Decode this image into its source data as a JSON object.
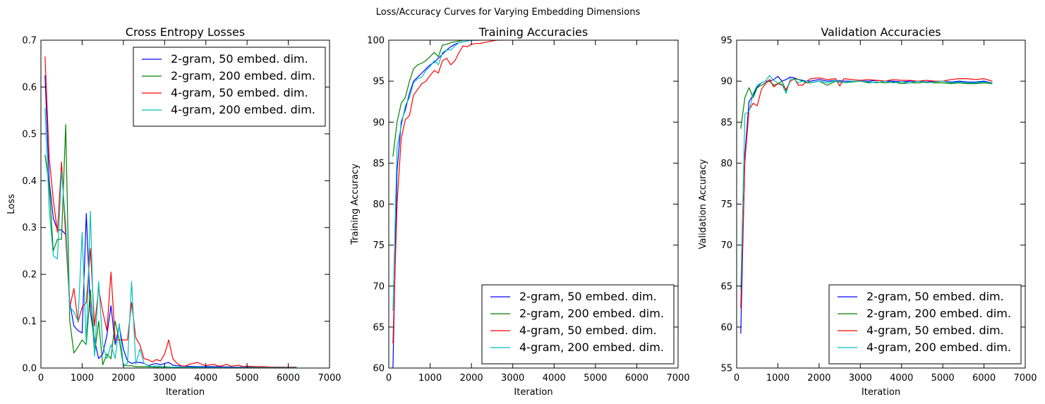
{
  "figure": {
    "suptitle": "Loss/Accuracy Curves for Varying Embedding Dimensions"
  },
  "series_colors": {
    "2-gram, 50 embed. dim.": "#0000ff",
    "2-gram, 200 embed. dim.": "#008000",
    "4-gram, 50 embed. dim.": "#ff0000",
    "4-gram, 200 embed. dim.": "#00bfbf"
  },
  "chart_data": [
    {
      "type": "line",
      "title": "Cross Entropy Losses",
      "xlabel": "Iteration",
      "ylabel": "Loss",
      "xlim": [
        0,
        7000
      ],
      "ylim": [
        0,
        0.7
      ],
      "xticks": [
        "0",
        "1000",
        "2000",
        "3000",
        "4000",
        "5000",
        "6000",
        "7000"
      ],
      "yticks": [
        "0.0",
        "0.1",
        "0.2",
        "0.3",
        "0.4",
        "0.5",
        "0.6",
        "0.7"
      ],
      "legend_position": "upper right",
      "grid": false,
      "series": [
        {
          "name": "2-gram, 50 embed. dim.",
          "x": [
            100,
            200,
            300,
            400,
            500,
            600,
            700,
            800,
            900,
            1000,
            1100,
            1200,
            1300,
            1400,
            1500,
            1600,
            1700,
            1800,
            1900,
            2000,
            2100,
            2200,
            2300,
            2400,
            2500,
            2600,
            2700,
            2800,
            2900,
            3000,
            3100,
            3200,
            3300,
            3500,
            3800,
            4200,
            4700,
            5200,
            5700,
            6200
          ],
          "y": [
            0.625,
            0.4,
            0.32,
            0.295,
            0.295,
            0.285,
            0.14,
            0.09,
            0.08,
            0.075,
            0.33,
            0.12,
            0.06,
            0.02,
            0.03,
            0.07,
            0.133,
            0.05,
            0.09,
            0.04,
            0.015,
            0.01,
            0.012,
            0.012,
            0.01,
            0.005,
            0.008,
            0.01,
            0.007,
            0.01,
            0.012,
            0.006,
            0.005,
            0.004,
            0.003,
            0.003,
            0.002,
            0.002,
            0.002,
            0.001
          ]
        },
        {
          "name": "2-gram, 200 embed. dim.",
          "x": [
            100,
            200,
            300,
            400,
            500,
            600,
            700,
            800,
            900,
            1000,
            1100,
            1200,
            1300,
            1400,
            1500,
            1600,
            1700,
            1800,
            1900,
            2000,
            2100,
            2200,
            2300,
            2500,
            2800,
            3200,
            3700,
            4200,
            4700,
            5200,
            5700,
            6200
          ],
          "y": [
            0.455,
            0.39,
            0.25,
            0.275,
            0.275,
            0.52,
            0.1,
            0.032,
            0.045,
            0.06,
            0.05,
            0.167,
            0.03,
            0.1,
            0.007,
            0.03,
            0.02,
            0.1,
            0.06,
            0.005,
            0.005,
            0.005,
            0.003,
            0.003,
            0.002,
            0.002,
            0.001,
            0.001,
            0.001,
            0.001,
            0.001,
            0.001
          ]
        },
        {
          "name": "4-gram, 50 embed. dim.",
          "x": [
            100,
            200,
            300,
            400,
            500,
            600,
            700,
            800,
            900,
            1000,
            1100,
            1200,
            1300,
            1400,
            1500,
            1600,
            1700,
            1800,
            1900,
            2000,
            2100,
            2200,
            2300,
            2400,
            2500,
            2600,
            2700,
            2800,
            2900,
            3000,
            3100,
            3200,
            3300,
            3400,
            3500,
            3600,
            3700,
            3800,
            3900,
            4000,
            4100,
            4200,
            4300,
            4400,
            4500,
            4600,
            4700,
            4800,
            4900,
            5000,
            5200,
            5400,
            5600,
            5800,
            6000,
            6200
          ],
          "y": [
            0.665,
            0.45,
            0.36,
            0.29,
            0.44,
            0.28,
            0.13,
            0.17,
            0.098,
            0.13,
            0.14,
            0.255,
            0.09,
            0.17,
            0.12,
            0.08,
            0.205,
            0.06,
            0.06,
            0.06,
            0.06,
            0.14,
            0.065,
            0.05,
            0.02,
            0.018,
            0.013,
            0.018,
            0.015,
            0.03,
            0.06,
            0.02,
            0.01,
            0.005,
            0.004,
            0.008,
            0.01,
            0.012,
            0.008,
            0.005,
            0.007,
            0.008,
            0.004,
            0.005,
            0.008,
            0.004,
            0.005,
            0.006,
            0.003,
            0.004,
            0.003,
            0.003,
            0.002,
            0.002,
            0.002,
            0.002
          ]
        },
        {
          "name": "4-gram, 200 embed. dim.",
          "x": [
            100,
            200,
            300,
            400,
            500,
            600,
            700,
            800,
            900,
            1000,
            1100,
            1200,
            1300,
            1400,
            1500,
            1600,
            1700,
            1800,
            1900,
            2000,
            2100,
            2200,
            2300,
            2400,
            2500,
            2600,
            2700,
            2800,
            2900,
            3000,
            3200,
            3500,
            3800,
            4200,
            4700,
            5200,
            5700,
            6200
          ],
          "y": [
            0.555,
            0.34,
            0.24,
            0.233,
            0.42,
            0.31,
            0.13,
            0.12,
            0.1,
            0.29,
            0.05,
            0.335,
            0.025,
            0.185,
            0.05,
            0.02,
            0.05,
            0.02,
            0.095,
            0.005,
            0.01,
            0.185,
            0.008,
            0.04,
            0.01,
            0.005,
            0.003,
            0.005,
            0.003,
            0.003,
            0.002,
            0.002,
            0.002,
            0.001,
            0.001,
            0.001,
            0.001,
            0.001
          ]
        }
      ]
    },
    {
      "type": "line",
      "title": "Training Accuracies",
      "xlabel": "Iteration",
      "ylabel": "Training Accuracy",
      "xlim": [
        0,
        7000
      ],
      "ylim": [
        60,
        100
      ],
      "xticks": [
        "0",
        "1000",
        "2000",
        "3000",
        "4000",
        "5000",
        "6000",
        "7000"
      ],
      "yticks": [
        "60",
        "65",
        "70",
        "75",
        "80",
        "85",
        "90",
        "95",
        "100"
      ],
      "legend_position": "lower right",
      "grid": false,
      "series": [
        {
          "name": "2-gram, 50 embed. dim.",
          "x": [
            100,
            200,
            300,
            400,
            500,
            600,
            700,
            800,
            900,
            1000,
            1100,
            1200,
            1300,
            1400,
            1500,
            1600,
            1700,
            1800,
            1900,
            2000,
            2100,
            2200
          ],
          "y": [
            60,
            84,
            90,
            91.5,
            93.5,
            95,
            95.5,
            96,
            96.5,
            97,
            97.3,
            97.8,
            98.3,
            98.8,
            99.2,
            99.5,
            99.7,
            99.8,
            99.9,
            100,
            100,
            100
          ]
        },
        {
          "name": "2-gram, 200 embed. dim.",
          "x": [
            100,
            200,
            300,
            400,
            500,
            600,
            700,
            800,
            900,
            1000,
            1100,
            1200,
            1300,
            1400,
            1500,
            1600,
            1700,
            1800,
            1900,
            2000,
            2100
          ],
          "y": [
            85.8,
            90,
            92.3,
            93,
            95,
            96.5,
            97,
            97.2,
            97.5,
            98,
            98.5,
            98,
            99.4,
            99.5,
            99.7,
            99.8,
            99.9,
            100,
            100,
            100,
            100
          ]
        },
        {
          "name": "4-gram, 50 embed. dim.",
          "x": [
            100,
            200,
            300,
            400,
            500,
            600,
            700,
            800,
            900,
            1000,
            1100,
            1200,
            1300,
            1400,
            1500,
            1600,
            1700,
            1800,
            1900,
            2000,
            2100,
            2200,
            2300,
            2400,
            2500,
            2600,
            2700
          ],
          "y": [
            63,
            80,
            88,
            90.3,
            90.8,
            93.3,
            94,
            94.7,
            95,
            95.7,
            96.3,
            96,
            97.5,
            97.8,
            97,
            97.5,
            98.5,
            99.3,
            99.2,
            99.5,
            99.6,
            99.6,
            99.7,
            99.8,
            99.9,
            100,
            100
          ]
        },
        {
          "name": "4-gram, 200 embed. dim.",
          "x": [
            100,
            200,
            300,
            400,
            500,
            600,
            700,
            800,
            900,
            1000,
            1100,
            1200,
            1300,
            1400,
            1500,
            1600,
            1700,
            1800,
            1900,
            2000,
            2100
          ],
          "y": [
            67,
            87,
            89.5,
            92,
            93,
            94.8,
            95.3,
            95.5,
            96.3,
            96.8,
            97.5,
            97,
            98.5,
            98.8,
            98.8,
            99.3,
            99.7,
            99.8,
            99.9,
            100,
            100
          ]
        }
      ]
    },
    {
      "type": "line",
      "title": "Validation Accuracies",
      "xlabel": "Iteration",
      "ylabel": "Validation Accuracy",
      "xlim": [
        0,
        7000
      ],
      "ylim": [
        55,
        95
      ],
      "xticks": [
        "0",
        "1000",
        "2000",
        "3000",
        "4000",
        "5000",
        "6000",
        "7000"
      ],
      "yticks": [
        "55",
        "60",
        "65",
        "70",
        "75",
        "80",
        "85",
        "90",
        "95"
      ],
      "legend_position": "lower right",
      "grid": false,
      "series": [
        {
          "name": "2-gram, 50 embed. dim.",
          "x": [
            100,
            200,
            300,
            400,
            500,
            600,
            700,
            800,
            900,
            1000,
            1100,
            1200,
            1300,
            1400,
            1500,
            1600,
            1700,
            1800,
            2000,
            2200,
            2400,
            2600,
            2800,
            3000,
            3200,
            3400,
            3600,
            3800,
            4000,
            4200,
            4400,
            4600,
            4800,
            5000,
            5200,
            5400,
            5600,
            5800,
            6000,
            6200
          ],
          "y": [
            59.2,
            81,
            87.5,
            88.3,
            89.3,
            89.8,
            90,
            90,
            90.2,
            90.6,
            90,
            90.2,
            90.5,
            90.4,
            90.2,
            90.1,
            90,
            90,
            90.2,
            90,
            90.1,
            90,
            90,
            90,
            90,
            90.1,
            90,
            90,
            89.9,
            90,
            90,
            89.9,
            90,
            90,
            89.9,
            90,
            89.9,
            89.9,
            90,
            89.8
          ]
        },
        {
          "name": "2-gram, 200 embed. dim.",
          "x": [
            100,
            200,
            300,
            400,
            500,
            600,
            700,
            800,
            900,
            1000,
            1100,
            1200,
            1300,
            1400,
            1500,
            1600,
            1700,
            1800,
            2000,
            2200,
            2400,
            2600,
            2800,
            3000,
            3200,
            3400,
            3600,
            3800,
            4000,
            4200,
            4400,
            4600,
            4800,
            5000,
            5200,
            5400,
            5600,
            5800,
            6000,
            6200
          ],
          "y": [
            84.2,
            88,
            89.2,
            88,
            89.2,
            89.5,
            89.8,
            90,
            89.5,
            89.7,
            90,
            88.8,
            90,
            90.3,
            90.2,
            90,
            89.8,
            89.8,
            90,
            89.5,
            90,
            89.8,
            89.9,
            90,
            89.8,
            89.9,
            89.8,
            89.9,
            89.7,
            89.8,
            89.8,
            89.9,
            89.8,
            89.8,
            89.7,
            89.8,
            89.7,
            89.7,
            89.8,
            89.7
          ]
        },
        {
          "name": "4-gram, 50 embed. dim.",
          "x": [
            100,
            200,
            300,
            400,
            500,
            600,
            700,
            800,
            900,
            1000,
            1100,
            1200,
            1300,
            1400,
            1500,
            1600,
            1700,
            1800,
            2000,
            2200,
            2400,
            2500,
            2600,
            2800,
            3000,
            3200,
            3400,
            3600,
            3800,
            4000,
            4200,
            4400,
            4600,
            4800,
            5000,
            5200,
            5400,
            5600,
            5800,
            6000,
            6200
          ],
          "y": [
            62.3,
            80.2,
            86.5,
            87.3,
            87,
            89,
            89.7,
            90.2,
            89.3,
            89.7,
            89.5,
            89,
            90,
            90.3,
            89.5,
            89.5,
            90,
            90.3,
            90.4,
            90.2,
            90.3,
            89.4,
            90.3,
            90.2,
            90.1,
            90.2,
            90.1,
            90,
            90.2,
            90.1,
            90.1,
            90,
            90.1,
            90,
            90,
            90.2,
            90.3,
            90.3,
            90.2,
            90.3,
            90.0
          ]
        },
        {
          "name": "4-gram, 200 embed. dim.",
          "x": [
            100,
            200,
            300,
            400,
            500,
            600,
            700,
            800,
            900,
            1000,
            1100,
            1200,
            1300,
            1400,
            1500,
            1600,
            1700,
            1800,
            2000,
            2200,
            2400,
            2600,
            2800,
            3000,
            3200,
            3400,
            3600,
            3800,
            4000,
            4200,
            4400,
            4600,
            4800,
            5000,
            5200,
            5400,
            5600,
            5800,
            6000,
            6200
          ],
          "y": [
            64.5,
            86,
            86.3,
            88.5,
            89.5,
            89.8,
            90,
            90.7,
            90.1,
            89.8,
            89.6,
            88.5,
            90.3,
            90.2,
            89.8,
            90,
            90,
            89.8,
            90,
            89.8,
            90.1,
            89.8,
            90,
            90,
            89.9,
            89.8,
            90,
            89.8,
            89.9,
            89.8,
            90,
            89.8,
            89.9,
            90,
            89.8,
            89.9,
            89.8,
            89.8,
            89.9,
            89.8
          ]
        }
      ]
    }
  ]
}
